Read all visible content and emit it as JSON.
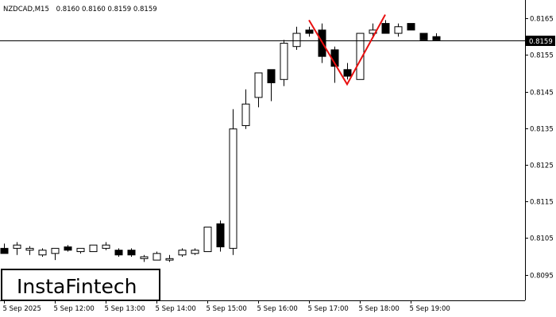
{
  "header": {
    "symbol": "NZDCAD,M15",
    "ohlc": "0.8160 0.8160 0.8159 0.8159"
  },
  "logo": {
    "text": "InstaFintech"
  },
  "current_price": {
    "label": "0.8159",
    "value": 0.8159
  },
  "chart_data": {
    "type": "candlestick",
    "title": "",
    "symbol": "NZDCAD",
    "timeframe": "M15",
    "ylim": [
      0.8088,
      0.817
    ],
    "y_ticks": [
      "0.8165",
      "0.8155",
      "0.8145",
      "0.8135",
      "0.8125",
      "0.8115",
      "0.8105",
      "0.8095"
    ],
    "x_ticks": [
      {
        "label": "5 Sep 2025",
        "index": 0
      },
      {
        "label": "5 Sep 12:00",
        "index": 4
      },
      {
        "label": "5 Sep 13:00",
        "index": 8
      },
      {
        "label": "5 Sep 14:00",
        "index": 12
      },
      {
        "label": "5 Sep 15:00",
        "index": 16
      },
      {
        "label": "5 Sep 16:00",
        "index": 20
      },
      {
        "label": "5 Sep 17:00",
        "index": 24
      },
      {
        "label": "5 Sep 18:00",
        "index": 28
      },
      {
        "label": "5 Sep 19:00",
        "index": 32
      }
    ],
    "candles": [
      {
        "o": 0.81022,
        "h": 0.81035,
        "l": 0.81008,
        "c": 0.81008
      },
      {
        "o": 0.81022,
        "h": 0.81039,
        "l": 0.81004,
        "c": 0.81031
      },
      {
        "o": 0.81017,
        "h": 0.81028,
        "l": 0.81004,
        "c": 0.81022
      },
      {
        "o": 0.81004,
        "h": 0.81022,
        "l": 0.80999,
        "c": 0.81017
      },
      {
        "o": 0.81008,
        "h": 0.81022,
        "l": 0.8099,
        "c": 0.81022
      },
      {
        "o": 0.81026,
        "h": 0.81031,
        "l": 0.81013,
        "c": 0.81017
      },
      {
        "o": 0.81013,
        "h": 0.81022,
        "l": 0.81008,
        "c": 0.81022
      },
      {
        "o": 0.81013,
        "h": 0.81031,
        "l": 0.81013,
        "c": 0.81031
      },
      {
        "o": 0.81022,
        "h": 0.81039,
        "l": 0.81017,
        "c": 0.81031
      },
      {
        "o": 0.81017,
        "h": 0.81022,
        "l": 0.80999,
        "c": 0.81004
      },
      {
        "o": 0.81017,
        "h": 0.81022,
        "l": 0.80999,
        "c": 0.81004
      },
      {
        "o": 0.80994,
        "h": 0.81004,
        "l": 0.80985,
        "c": 0.80999
      },
      {
        "o": 0.8099,
        "h": 0.81013,
        "l": 0.8099,
        "c": 0.81008
      },
      {
        "o": 0.8099,
        "h": 0.81004,
        "l": 0.80985,
        "c": 0.80994
      },
      {
        "o": 0.81004,
        "h": 0.81022,
        "l": 0.80999,
        "c": 0.81017
      },
      {
        "o": 0.81008,
        "h": 0.81022,
        "l": 0.81004,
        "c": 0.81017
      },
      {
        "o": 0.81013,
        "h": 0.8108,
        "l": 0.81013,
        "c": 0.8108
      },
      {
        "o": 0.81089,
        "h": 0.81098,
        "l": 0.81013,
        "c": 0.81026
      },
      {
        "o": 0.81022,
        "h": 0.81402,
        "l": 0.81004,
        "c": 0.81348
      },
      {
        "o": 0.81357,
        "h": 0.81456,
        "l": 0.81348,
        "c": 0.81416
      },
      {
        "o": 0.81434,
        "h": 0.81501,
        "l": 0.81407,
        "c": 0.81501
      },
      {
        "o": 0.8151,
        "h": 0.8151,
        "l": 0.81424,
        "c": 0.81474
      },
      {
        "o": 0.81483,
        "h": 0.81591,
        "l": 0.81465,
        "c": 0.81582
      },
      {
        "o": 0.81573,
        "h": 0.81627,
        "l": 0.81564,
        "c": 0.81609
      },
      {
        "o": 0.81618,
        "h": 0.81627,
        "l": 0.816,
        "c": 0.81609
      },
      {
        "o": 0.81618,
        "h": 0.81636,
        "l": 0.81528,
        "c": 0.81546
      },
      {
        "o": 0.81564,
        "h": 0.81573,
        "l": 0.81474,
        "c": 0.81519
      },
      {
        "o": 0.8151,
        "h": 0.81528,
        "l": 0.81483,
        "c": 0.81492
      },
      {
        "o": 0.81483,
        "h": 0.81609,
        "l": 0.81483,
        "c": 0.81609
      },
      {
        "o": 0.81609,
        "h": 0.81636,
        "l": 0.816,
        "c": 0.81618
      },
      {
        "o": 0.81636,
        "h": 0.81645,
        "l": 0.81609,
        "c": 0.81609
      },
      {
        "o": 0.81609,
        "h": 0.81636,
        "l": 0.816,
        "c": 0.81627
      },
      {
        "o": 0.81636,
        "h": 0.81636,
        "l": 0.81618,
        "c": 0.81618
      },
      {
        "o": 0.81609,
        "h": 0.81609,
        "l": 0.81591,
        "c": 0.81591
      },
      {
        "o": 0.816,
        "h": 0.81609,
        "l": 0.81591,
        "c": 0.81591
      }
    ],
    "pattern": {
      "color": "#e81010",
      "points": [
        {
          "index": 24,
          "price": 0.81645
        },
        {
          "index": 27,
          "price": 0.8147
        },
        {
          "index": 30,
          "price": 0.8166
        }
      ]
    },
    "hline": {
      "price": 0.8159,
      "color": "#000000"
    },
    "colors": {
      "bull": "#ffffff",
      "bear": "#000000",
      "outline": "#000000",
      "background": "#ffffff"
    }
  }
}
